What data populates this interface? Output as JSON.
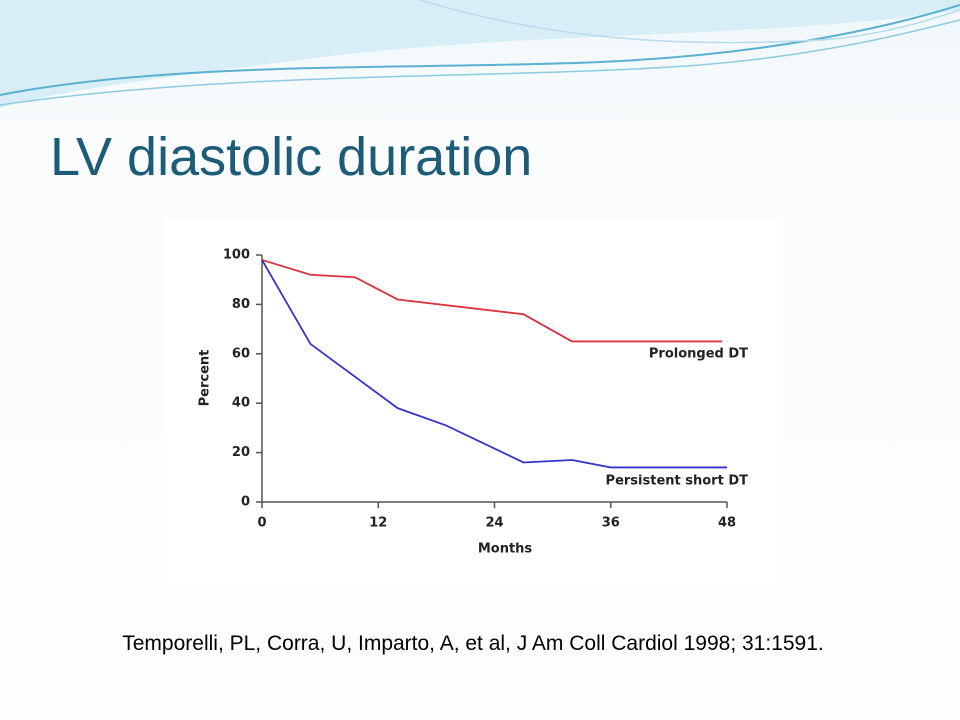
{
  "title": "LV diastolic duration",
  "citation": "Temporelli, PL, Corra, U, Imparto, A, et al, J Am Coll Cardiol 1998; 31:1591.",
  "chart_data": {
    "type": "line",
    "xlabel": "Months",
    "ylabel": "Percent",
    "xlim": [
      0,
      48
    ],
    "xticks": [
      0,
      12,
      24,
      36,
      48
    ],
    "ylim": [
      0,
      100
    ],
    "yticks": [
      0,
      20,
      40,
      60,
      80,
      100
    ],
    "series": [
      {
        "name": "Prolonged DT",
        "color": "#d9333f",
        "x": [
          0,
          5,
          9.6,
          14,
          27,
          32,
          47.5
        ],
        "values": [
          98,
          92,
          91,
          82,
          76,
          65,
          65
        ]
      },
      {
        "name": "Persistent short DT",
        "color": "#3535c8",
        "x": [
          0,
          5,
          14,
          19,
          27,
          32,
          36,
          48
        ],
        "values": [
          98,
          64,
          38,
          31,
          16,
          17,
          14,
          14
        ]
      }
    ]
  }
}
